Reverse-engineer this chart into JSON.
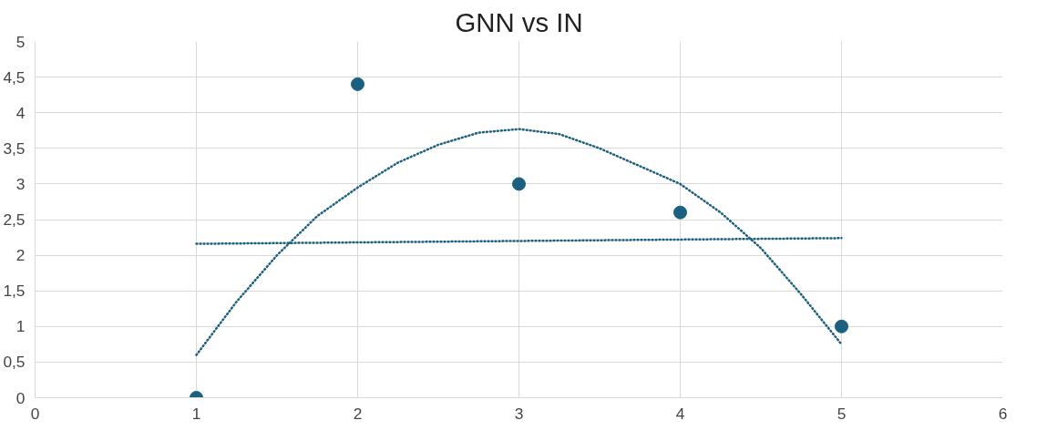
{
  "chart_data": {
    "type": "scatter",
    "title": "GNN vs IN",
    "xlim": [
      0,
      6
    ],
    "xticks": [
      0,
      1,
      2,
      3,
      4,
      5,
      6
    ],
    "ylim": [
      0,
      5
    ],
    "yticks": [
      {
        "value": 0,
        "label": "0"
      },
      {
        "value": 0.5,
        "label": "0,5"
      },
      {
        "value": 1,
        "label": "1"
      },
      {
        "value": 1.5,
        "label": "1,5"
      },
      {
        "value": 2,
        "label": "2"
      },
      {
        "value": 2.5,
        "label": "2,5"
      },
      {
        "value": 3,
        "label": "3"
      },
      {
        "value": 3.5,
        "label": "3,5"
      },
      {
        "value": 4,
        "label": "4"
      },
      {
        "value": 4.5,
        "label": "4,5"
      },
      {
        "value": 5,
        "label": "5"
      }
    ],
    "grid": true,
    "marker": "circle",
    "series": [
      {
        "color": "#1c6080",
        "x": [
          1,
          2,
          3,
          4,
          5
        ],
        "values": [
          0,
          4.4,
          3,
          2.6,
          1
        ]
      },
      {
        "type": "line",
        "color": "#1c6080",
        "line_style": "dotted",
        "marker": "none",
        "x": [
          1,
          5
        ],
        "values": [
          2.16,
          2.24
        ]
      },
      {
        "type": "line",
        "color": "#1c6080",
        "line_style": "dotted",
        "marker": "none",
        "x": [
          1,
          1.25,
          1.5,
          1.75,
          2,
          2.25,
          2.5,
          2.75,
          3,
          3.25,
          3.5,
          3.75,
          4,
          4.25,
          4.5,
          4.75,
          5
        ],
        "values": [
          0.6,
          1.35,
          2.0,
          2.55,
          2.95,
          3.3,
          3.55,
          3.72,
          3.77,
          3.7,
          3.5,
          3.25,
          3.0,
          2.6,
          2.1,
          1.45,
          0.75
        ]
      }
    ]
  }
}
